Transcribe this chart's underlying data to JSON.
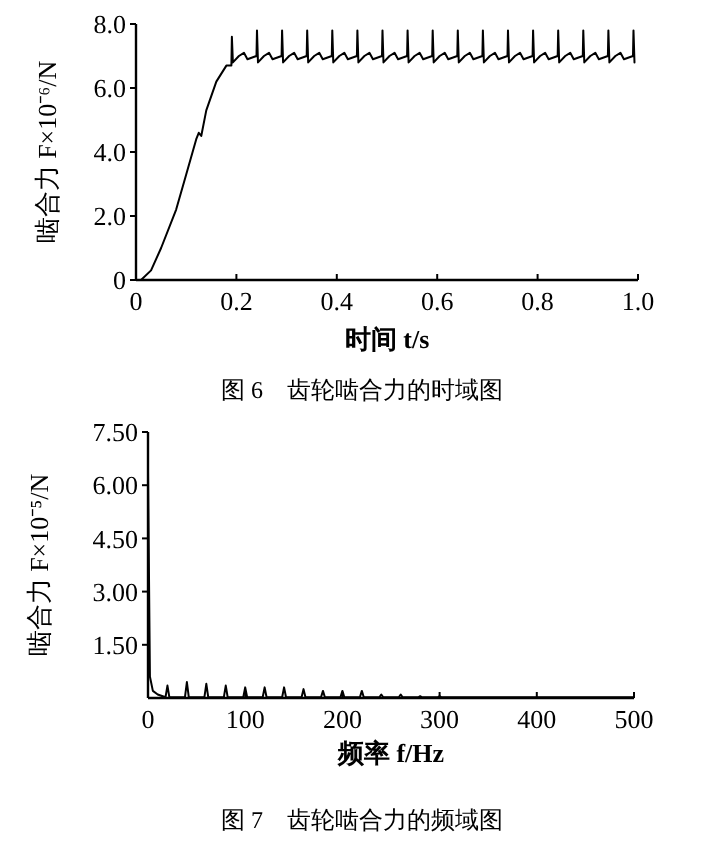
{
  "chart_data": [
    {
      "type": "line",
      "xlabel": "时间 t/s",
      "ylabel": "啮合力 F×10⁻⁶/N",
      "annotations": [
        "图 6　齿轮啮合力的时域图"
      ],
      "color": "#000000",
      "xlim": [
        0,
        1
      ],
      "ylim": [
        0,
        8
      ],
      "xticks": [
        0,
        {
          "value": 0.2,
          "label": "0.2"
        },
        {
          "value": 0.4,
          "label": "0.4"
        },
        {
          "value": 0.6,
          "label": "0.6"
        },
        {
          "value": 0.8,
          "label": "0.8"
        },
        {
          "value": 1,
          "label": "1.0"
        }
      ],
      "yticks": [
        0,
        {
          "value": 2,
          "label": "2.0"
        },
        {
          "value": 4,
          "label": "4.0"
        },
        {
          "value": 6,
          "label": "6.0"
        },
        {
          "value": 8,
          "label": "8.0"
        }
      ],
      "x": [
        0,
        0.01,
        0.03,
        0.05,
        0.08,
        0.1,
        0.12,
        0.125,
        0.13,
        0.14,
        0.16,
        0.18,
        0.19,
        0.191,
        0.193,
        0.205,
        0.215,
        0.222,
        0.24,
        0.241,
        0.243,
        0.255,
        0.265,
        0.272,
        0.29,
        0.291,
        0.293,
        0.305,
        0.315,
        0.322,
        0.34,
        0.341,
        0.343,
        0.355,
        0.365,
        0.372,
        0.39,
        0.391,
        0.393,
        0.405,
        0.415,
        0.422,
        0.44,
        0.441,
        0.443,
        0.455,
        0.465,
        0.472,
        0.49,
        0.491,
        0.493,
        0.505,
        0.515,
        0.522,
        0.54,
        0.541,
        0.543,
        0.555,
        0.565,
        0.572,
        0.59,
        0.591,
        0.593,
        0.605,
        0.615,
        0.622,
        0.64,
        0.641,
        0.643,
        0.655,
        0.665,
        0.672,
        0.69,
        0.691,
        0.693,
        0.705,
        0.715,
        0.722,
        0.74,
        0.741,
        0.743,
        0.755,
        0.765,
        0.772,
        0.79,
        0.791,
        0.793,
        0.805,
        0.815,
        0.822,
        0.84,
        0.841,
        0.843,
        0.855,
        0.865,
        0.872,
        0.89,
        0.891,
        0.893,
        0.905,
        0.915,
        0.922,
        0.94,
        0.941,
        0.943,
        0.955,
        0.965,
        0.972,
        0.99,
        0.991,
        0.993
      ],
      "values": [
        0,
        0,
        0.3,
        1.0,
        2.2,
        3.3,
        4.4,
        4.6,
        4.5,
        5.3,
        6.2,
        6.7,
        6.7,
        7.6,
        6.8,
        7.0,
        7.1,
        6.9,
        7.0,
        7.8,
        6.8,
        7.0,
        7.1,
        6.9,
        7.0,
        7.8,
        6.8,
        7.0,
        7.1,
        6.9,
        7.0,
        7.8,
        6.8,
        7.0,
        7.1,
        6.9,
        7.0,
        7.8,
        6.8,
        7.0,
        7.1,
        6.9,
        7.0,
        7.8,
        6.8,
        7.0,
        7.1,
        6.9,
        7.0,
        7.8,
        6.8,
        7.0,
        7.1,
        6.9,
        7.0,
        7.8,
        6.8,
        7.0,
        7.1,
        6.9,
        7.0,
        7.8,
        6.8,
        7.0,
        7.1,
        6.9,
        7.0,
        7.8,
        6.8,
        7.0,
        7.1,
        6.9,
        7.0,
        7.8,
        6.8,
        7.0,
        7.1,
        6.9,
        7.0,
        7.8,
        6.8,
        7.0,
        7.1,
        6.9,
        7.0,
        7.8,
        6.8,
        7.0,
        7.1,
        6.9,
        7.0,
        7.8,
        6.8,
        7.0,
        7.1,
        6.9,
        7.0,
        7.8,
        6.8,
        7.0,
        7.1,
        6.9,
        7.0,
        7.8,
        6.8,
        7.0,
        7.1,
        6.9,
        7.0,
        7.8,
        6.8
      ]
    },
    {
      "type": "line",
      "xlabel": "频率 f/Hz",
      "ylabel": "啮合力 F×10⁻⁵/N",
      "annotations": [
        "图 7　齿轮啮合力的频域图"
      ],
      "color": "#000000",
      "xlim": [
        0,
        500
      ],
      "ylim": [
        0,
        7.5
      ],
      "xticks": [
        0,
        100,
        200,
        300,
        400,
        500
      ],
      "yticks": [
        {
          "value": 1.5,
          "label": "1.50"
        },
        {
          "value": 3,
          "label": "3.00"
        },
        {
          "value": 4.5,
          "label": "4.50"
        },
        {
          "value": 6,
          "label": "6.00"
        },
        {
          "value": 7.5,
          "label": "7.50"
        }
      ],
      "x": [
        0,
        2,
        5,
        10,
        18,
        20,
        22,
        38,
        40,
        42,
        58,
        60,
        62,
        78,
        80,
        82,
        98,
        100,
        102,
        118,
        120,
        122,
        138,
        140,
        142,
        158,
        160,
        162,
        178,
        180,
        182,
        198,
        200,
        202,
        218,
        220,
        222,
        238,
        240,
        242,
        258,
        260,
        262,
        278,
        280,
        282,
        298,
        300,
        302,
        500
      ],
      "values": [
        6.4,
        0.6,
        0.2,
        0.1,
        0.02,
        0.35,
        0.02,
        0.02,
        0.45,
        0.02,
        0.02,
        0.4,
        0.02,
        0.02,
        0.35,
        0.02,
        0.02,
        0.3,
        0.02,
        0.02,
        0.3,
        0.02,
        0.02,
        0.3,
        0.02,
        0.02,
        0.25,
        0.02,
        0.02,
        0.2,
        0.02,
        0.02,
        0.2,
        0.02,
        0.02,
        0.2,
        0.02,
        0.02,
        0.1,
        0.02,
        0.02,
        0.1,
        0.02,
        0.02,
        0.05,
        0.02,
        0.02,
        0.05,
        0.02,
        0.02
      ]
    }
  ]
}
